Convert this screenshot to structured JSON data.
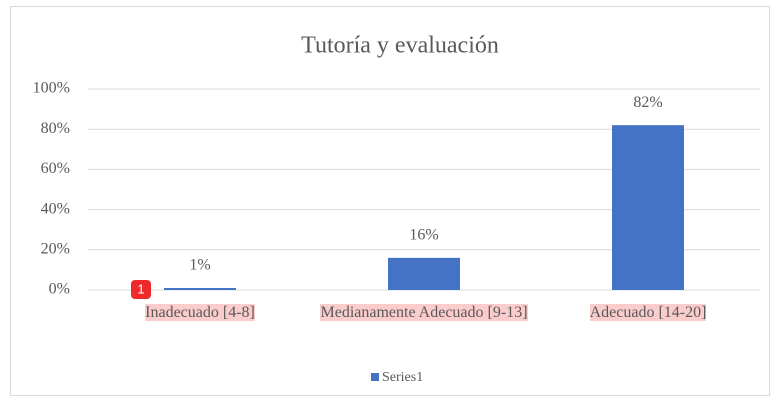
{
  "chart_data": {
    "type": "bar",
    "title": "Tutoría y evaluación",
    "categories": [
      "Inadecuado  [4-8]",
      "Medianamente Adecuado [9-13]",
      "Adecuado  [14-20]"
    ],
    "series": [
      {
        "name": "Series1",
        "color": "#4472c4",
        "values": [
          1,
          16,
          82
        ],
        "value_labels": [
          "1%",
          "16%",
          "82%"
        ]
      }
    ],
    "ylim": [
      0,
      100
    ],
    "yticks": [
      {
        "value": 0,
        "label": "0%"
      },
      {
        "value": 20,
        "label": "20%"
      },
      {
        "value": 40,
        "label": "40%"
      },
      {
        "value": 60,
        "label": "60%"
      },
      {
        "value": 80,
        "label": "80%"
      },
      {
        "value": 100,
        "label": "100%"
      }
    ],
    "grid": true,
    "legend": "bottom"
  },
  "badge": "1"
}
